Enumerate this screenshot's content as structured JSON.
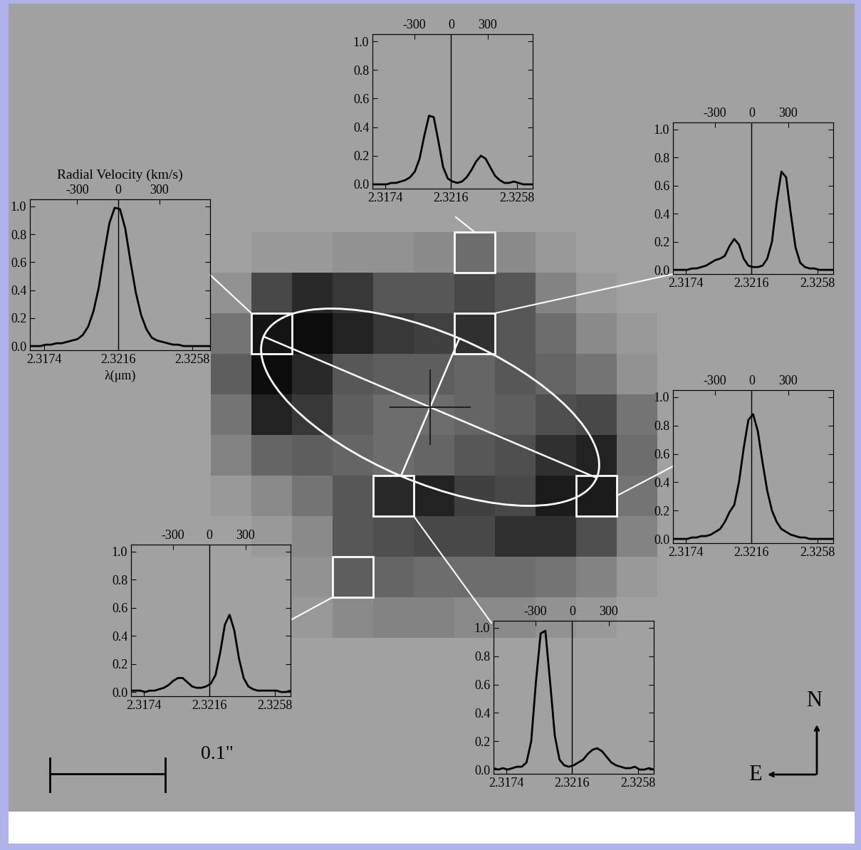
{
  "image": {
    "cells": [
      [
        0.0,
        0.05,
        0.05,
        0.1,
        0.1,
        0.15,
        0.35,
        0.15,
        0.05,
        0.0,
        0.0
      ],
      [
        0.1,
        0.6,
        0.8,
        0.7,
        0.5,
        0.5,
        0.6,
        0.5,
        0.2,
        0.05,
        0.0
      ],
      [
        0.3,
        0.95,
        1.0,
        0.85,
        0.7,
        0.65,
        0.75,
        0.5,
        0.35,
        0.15,
        0.05
      ],
      [
        0.45,
        1.0,
        0.8,
        0.5,
        0.45,
        0.45,
        0.4,
        0.5,
        0.4,
        0.3,
        0.1
      ],
      [
        0.3,
        0.85,
        0.7,
        0.45,
        0.35,
        0.35,
        0.4,
        0.45,
        0.55,
        0.6,
        0.3
      ],
      [
        0.2,
        0.4,
        0.45,
        0.4,
        0.35,
        0.4,
        0.5,
        0.55,
        0.75,
        0.85,
        0.35
      ],
      [
        0.05,
        0.15,
        0.3,
        0.5,
        0.8,
        0.85,
        0.65,
        0.6,
        0.9,
        0.9,
        0.3
      ],
      [
        0.0,
        0.05,
        0.15,
        0.5,
        0.55,
        0.6,
        0.6,
        0.75,
        0.75,
        0.55,
        0.2
      ],
      [
        0.0,
        0.0,
        0.1,
        0.45,
        0.4,
        0.35,
        0.35,
        0.35,
        0.3,
        0.2,
        0.05
      ],
      [
        0.0,
        0.0,
        0.05,
        0.15,
        0.2,
        0.2,
        0.15,
        0.15,
        0.1,
        0.05,
        0.0
      ]
    ]
  },
  "scale_bar": {
    "label": "0.1\""
  },
  "compass": {
    "north": "N",
    "east": "E"
  },
  "chart_data": [
    {
      "type": "line",
      "pixel": [
        1,
        2
      ],
      "x2label": "Radial Velocity (km/s)",
      "xlabel": "λ(μm)",
      "x": [
        2.3166,
        2.3169,
        2.3172,
        2.3175,
        2.3178,
        2.3181,
        2.3184,
        2.3187,
        2.319,
        2.3193,
        2.3196,
        2.3199,
        2.3202,
        2.3205,
        2.3208,
        2.3211,
        2.3214,
        2.3217,
        2.322,
        2.3223,
        2.3226,
        2.3229,
        2.3232,
        2.3235,
        2.3238,
        2.3241,
        2.3244,
        2.3247,
        2.325,
        2.3253,
        2.3256,
        2.3259,
        2.3262,
        2.3265,
        2.3268
      ],
      "values": [
        0.0,
        0.0,
        0.0,
        0.01,
        0.01,
        0.02,
        0.02,
        0.03,
        0.04,
        0.05,
        0.08,
        0.14,
        0.25,
        0.42,
        0.66,
        0.88,
        0.99,
        0.98,
        0.84,
        0.6,
        0.38,
        0.22,
        0.12,
        0.06,
        0.04,
        0.03,
        0.02,
        0.01,
        0.01,
        0.0,
        0.0,
        0.0,
        0.0,
        0.0,
        0.0
      ],
      "reference_line": 2.3216,
      "xlim": [
        2.3166,
        2.3268
      ],
      "xticks": [
        2.3174,
        2.3216,
        2.3258
      ],
      "ylim": [
        -0.03,
        1.05
      ],
      "yticks": [
        0.0,
        0.2,
        0.4,
        0.6,
        0.8,
        1.0
      ],
      "x2lim": [
        -646,
        671
      ],
      "x2ticks": [
        -300,
        0,
        300
      ],
      "color": "#000000"
    },
    {
      "type": "line",
      "pixel": [
        6,
        0
      ],
      "x": [
        2.3166,
        2.3169,
        2.3172,
        2.3175,
        2.3178,
        2.3181,
        2.3184,
        2.3187,
        2.319,
        2.3193,
        2.3196,
        2.3199,
        2.3202,
        2.3205,
        2.3208,
        2.3211,
        2.3214,
        2.3217,
        2.322,
        2.3223,
        2.3226,
        2.3229,
        2.3232,
        2.3235,
        2.3238,
        2.3241,
        2.3244,
        2.3247,
        2.325,
        2.3253,
        2.3256,
        2.3259,
        2.3262,
        2.3265,
        2.3268
      ],
      "values": [
        0.0,
        0.0,
        0.0,
        0.0,
        0.01,
        0.01,
        0.02,
        0.03,
        0.05,
        0.09,
        0.18,
        0.34,
        0.48,
        0.47,
        0.3,
        0.12,
        0.04,
        0.02,
        0.01,
        0.02,
        0.05,
        0.1,
        0.16,
        0.2,
        0.18,
        0.12,
        0.06,
        0.03,
        0.01,
        0.01,
        0.02,
        0.01,
        0.0,
        0.0,
        0.0
      ],
      "reference_line": 2.3216,
      "xlim": [
        2.3166,
        2.3268
      ],
      "xticks": [
        2.3174,
        2.3216,
        2.3258
      ],
      "ylim": [
        -0.03,
        1.05
      ],
      "yticks": [
        0.0,
        0.2,
        0.4,
        0.6,
        0.8,
        1.0
      ],
      "x2lim": [
        -646,
        671
      ],
      "x2ticks": [
        -300,
        0,
        300
      ],
      "color": "#000000"
    },
    {
      "type": "line",
      "pixel": [
        6,
        2
      ],
      "x": [
        2.3166,
        2.3169,
        2.3172,
        2.3175,
        2.3178,
        2.3181,
        2.3184,
        2.3187,
        2.319,
        2.3193,
        2.3196,
        2.3199,
        2.3202,
        2.3205,
        2.3208,
        2.3211,
        2.3214,
        2.3217,
        2.322,
        2.3223,
        2.3226,
        2.3229,
        2.3232,
        2.3235,
        2.3238,
        2.3241,
        2.3244,
        2.3247,
        2.325,
        2.3253,
        2.3256,
        2.3259,
        2.3262,
        2.3265,
        2.3268
      ],
      "values": [
        0.0,
        0.0,
        0.0,
        0.0,
        0.01,
        0.01,
        0.02,
        0.03,
        0.05,
        0.07,
        0.08,
        0.1,
        0.17,
        0.22,
        0.18,
        0.08,
        0.03,
        0.02,
        0.02,
        0.03,
        0.08,
        0.2,
        0.48,
        0.7,
        0.66,
        0.4,
        0.16,
        0.05,
        0.02,
        0.01,
        0.01,
        0.0,
        0.0,
        0.0,
        0.0
      ],
      "reference_line": 2.3216,
      "xlim": [
        2.3166,
        2.3268
      ],
      "xticks": [
        2.3174,
        2.3216,
        2.3258
      ],
      "ylim": [
        -0.03,
        1.05
      ],
      "yticks": [
        0.0,
        0.2,
        0.4,
        0.6,
        0.8,
        1.0
      ],
      "x2lim": [
        -646,
        671
      ],
      "x2ticks": [
        -300,
        0,
        300
      ],
      "color": "#000000"
    },
    {
      "type": "line",
      "pixel": [
        9,
        6
      ],
      "x": [
        2.3166,
        2.3169,
        2.3172,
        2.3175,
        2.3178,
        2.3181,
        2.3184,
        2.3187,
        2.319,
        2.3193,
        2.3196,
        2.3199,
        2.3202,
        2.3205,
        2.3208,
        2.3211,
        2.3214,
        2.3217,
        2.322,
        2.3223,
        2.3226,
        2.3229,
        2.3232,
        2.3235,
        2.3238,
        2.3241,
        2.3244,
        2.3247,
        2.325,
        2.3253,
        2.3256,
        2.3259,
        2.3262,
        2.3265,
        2.3268
      ],
      "values": [
        0.0,
        0.0,
        0.0,
        0.0,
        0.01,
        0.01,
        0.02,
        0.02,
        0.03,
        0.05,
        0.07,
        0.12,
        0.19,
        0.24,
        0.4,
        0.64,
        0.84,
        0.88,
        0.76,
        0.54,
        0.34,
        0.2,
        0.12,
        0.07,
        0.05,
        0.03,
        0.02,
        0.01,
        0.01,
        0.0,
        0.0,
        0.0,
        0.0,
        0.0,
        0.0
      ],
      "reference_line": 2.3216,
      "xlim": [
        2.3166,
        2.3268
      ],
      "xticks": [
        2.3174,
        2.3216,
        2.3258
      ],
      "ylim": [
        -0.03,
        1.05
      ],
      "yticks": [
        0.0,
        0.2,
        0.4,
        0.6,
        0.8,
        1.0
      ],
      "x2lim": [
        -646,
        671
      ],
      "x2ticks": [
        -300,
        0,
        300
      ],
      "color": "#000000"
    },
    {
      "type": "line",
      "pixel": [
        3,
        8
      ],
      "x": [
        2.3166,
        2.3169,
        2.3172,
        2.3175,
        2.3178,
        2.3181,
        2.3184,
        2.3187,
        2.319,
        2.3193,
        2.3196,
        2.3199,
        2.3202,
        2.3205,
        2.3208,
        2.3211,
        2.3214,
        2.3217,
        2.322,
        2.3223,
        2.3226,
        2.3229,
        2.3232,
        2.3235,
        2.3238,
        2.3241,
        2.3244,
        2.3247,
        2.325,
        2.3253,
        2.3256,
        2.3259,
        2.3262,
        2.3265,
        2.3268
      ],
      "values": [
        0.01,
        0.01,
        0.01,
        0.0,
        0.01,
        0.01,
        0.02,
        0.03,
        0.05,
        0.08,
        0.1,
        0.1,
        0.07,
        0.04,
        0.03,
        0.03,
        0.04,
        0.06,
        0.12,
        0.28,
        0.48,
        0.55,
        0.44,
        0.24,
        0.1,
        0.04,
        0.02,
        0.01,
        0.01,
        0.01,
        0.01,
        0.01,
        0.0,
        0.0,
        0.01
      ],
      "reference_line": 2.3216,
      "xlim": [
        2.3166,
        2.3268
      ],
      "xticks": [
        2.3174,
        2.3216,
        2.3258
      ],
      "ylim": [
        -0.03,
        1.05
      ],
      "yticks": [
        0.0,
        0.2,
        0.4,
        0.6,
        0.8,
        1.0
      ],
      "x2lim": [
        -646,
        671
      ],
      "x2ticks": [
        -300,
        0,
        300
      ],
      "color": "#000000"
    },
    {
      "type": "line",
      "pixel": [
        4,
        6
      ],
      "x": [
        2.3166,
        2.3169,
        2.3172,
        2.3175,
        2.3178,
        2.3181,
        2.3184,
        2.3187,
        2.319,
        2.3193,
        2.3196,
        2.3199,
        2.3202,
        2.3205,
        2.3208,
        2.3211,
        2.3214,
        2.3217,
        2.322,
        2.3223,
        2.3226,
        2.3229,
        2.3232,
        2.3235,
        2.3238,
        2.3241,
        2.3244,
        2.3247,
        2.325,
        2.3253,
        2.3256,
        2.3259,
        2.3262,
        2.3265,
        2.3268
      ],
      "values": [
        0.01,
        0.0,
        0.01,
        0.0,
        0.01,
        0.02,
        0.02,
        0.05,
        0.2,
        0.62,
        0.96,
        0.98,
        0.62,
        0.24,
        0.07,
        0.03,
        0.02,
        0.03,
        0.05,
        0.07,
        0.11,
        0.14,
        0.15,
        0.13,
        0.09,
        0.05,
        0.03,
        0.02,
        0.01,
        0.01,
        0.02,
        0.0,
        0.0,
        0.01,
        0.0
      ],
      "reference_line": 2.3216,
      "xlim": [
        2.3166,
        2.3268
      ],
      "xticks": [
        2.3174,
        2.3216,
        2.3258
      ],
      "ylim": [
        -0.03,
        1.05
      ],
      "yticks": [
        0.0,
        0.2,
        0.4,
        0.6,
        0.8,
        1.0
      ],
      "x2lim": [
        -646,
        671
      ],
      "x2ticks": [
        -300,
        0,
        300
      ],
      "color": "#000000"
    }
  ]
}
